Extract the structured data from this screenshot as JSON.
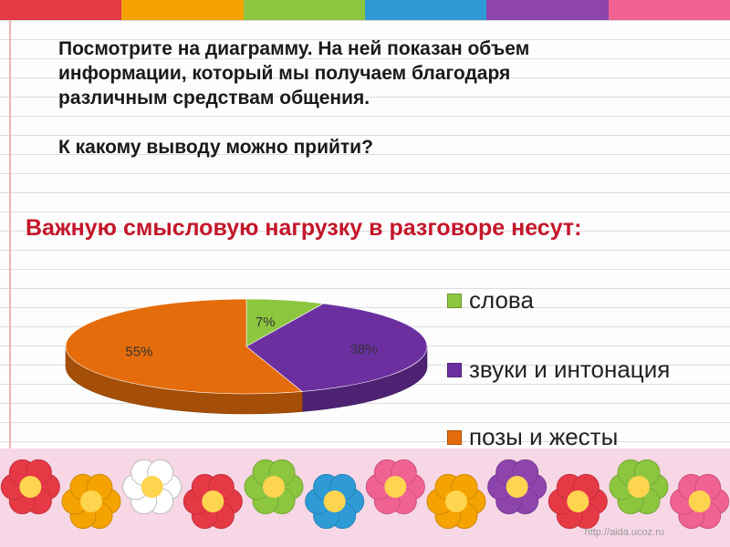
{
  "slide": {
    "question_lines": [
      "Посмотрите на диаграмму. На ней показан объем",
      "информации, который мы получаем благодаря",
      "различным средствам общения."
    ],
    "question2": "К какому выводу можно прийти?",
    "subtitle": "Важную смысловую нагрузку в разговоре несут:",
    "watermark": "http://aida.ucoz.ru"
  },
  "chart_data": {
    "type": "pie",
    "title": "",
    "categories": [
      "слова",
      "звуки и интонация",
      "позы и жесты"
    ],
    "values": [
      7,
      38,
      55
    ],
    "labels": [
      "7%",
      "38%",
      "55%"
    ],
    "colors": [
      "#8cc63f",
      "#6b2fa0",
      "#e46c0a"
    ],
    "legend": "right",
    "style": "3d"
  },
  "colors": {
    "topbar": [
      "#e63946",
      "#f4a300",
      "#8cc63f",
      "#2e9bd6",
      "#8e44ad",
      "#f06292"
    ],
    "subtitle": "#c4162a"
  },
  "footer_decoration": [
    {
      "icon": "flower-icon",
      "color": "#e63946"
    },
    {
      "icon": "flower-icon",
      "color": "#f4a300"
    },
    {
      "icon": "flower-icon",
      "color": "#ffffff"
    },
    {
      "icon": "flower-icon",
      "color": "#e63946"
    },
    {
      "icon": "flower-icon",
      "color": "#8cc63f"
    },
    {
      "icon": "flower-icon",
      "color": "#2e9bd6"
    },
    {
      "icon": "flower-icon",
      "color": "#f06292"
    },
    {
      "icon": "flower-icon",
      "color": "#f4a300"
    },
    {
      "icon": "flower-icon",
      "color": "#8e44ad"
    },
    {
      "icon": "flower-icon",
      "color": "#e63946"
    },
    {
      "icon": "flower-icon",
      "color": "#8cc63f"
    },
    {
      "icon": "flower-icon",
      "color": "#f06292"
    }
  ]
}
